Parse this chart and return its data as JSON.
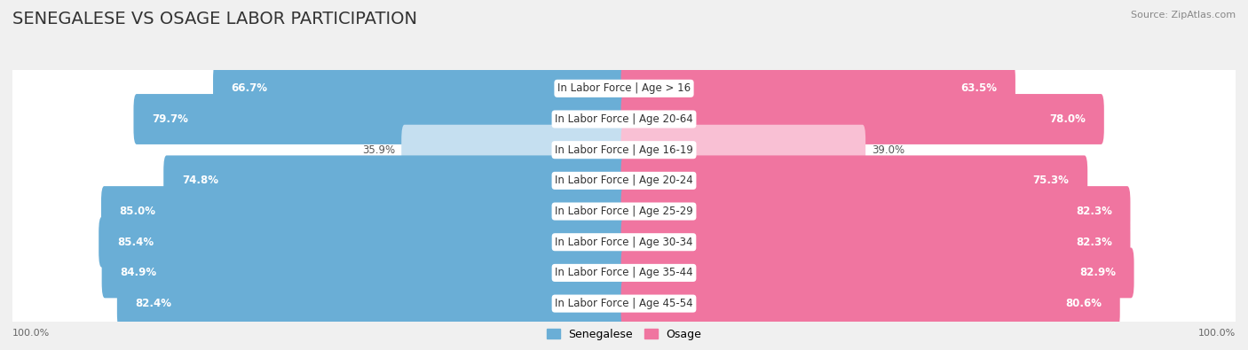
{
  "title": "SENEGALESE VS OSAGE LABOR PARTICIPATION",
  "source": "Source: ZipAtlas.com",
  "categories": [
    "In Labor Force | Age > 16",
    "In Labor Force | Age 20-64",
    "In Labor Force | Age 16-19",
    "In Labor Force | Age 20-24",
    "In Labor Force | Age 25-29",
    "In Labor Force | Age 30-34",
    "In Labor Force | Age 35-44",
    "In Labor Force | Age 45-54"
  ],
  "senegalese": [
    66.7,
    79.7,
    35.9,
    74.8,
    85.0,
    85.4,
    84.9,
    82.4
  ],
  "osage": [
    63.5,
    78.0,
    39.0,
    75.3,
    82.3,
    82.3,
    82.9,
    80.6
  ],
  "senegalese_color_strong": "#6aaed6",
  "senegalese_color_light": "#c5dff0",
  "osage_color_strong": "#f075a0",
  "osage_color_light": "#f9c0d4",
  "background_color": "#f0f0f0",
  "row_bg_color": "#ffffff",
  "row_bg_shadow": "#e0e0e0",
  "max_value": 100.0,
  "legend_labels": [
    "Senegalese",
    "Osage"
  ],
  "title_fontsize": 14,
  "label_fontsize": 8.5,
  "bar_label_fontsize": 8.5,
  "light_threshold": 55
}
